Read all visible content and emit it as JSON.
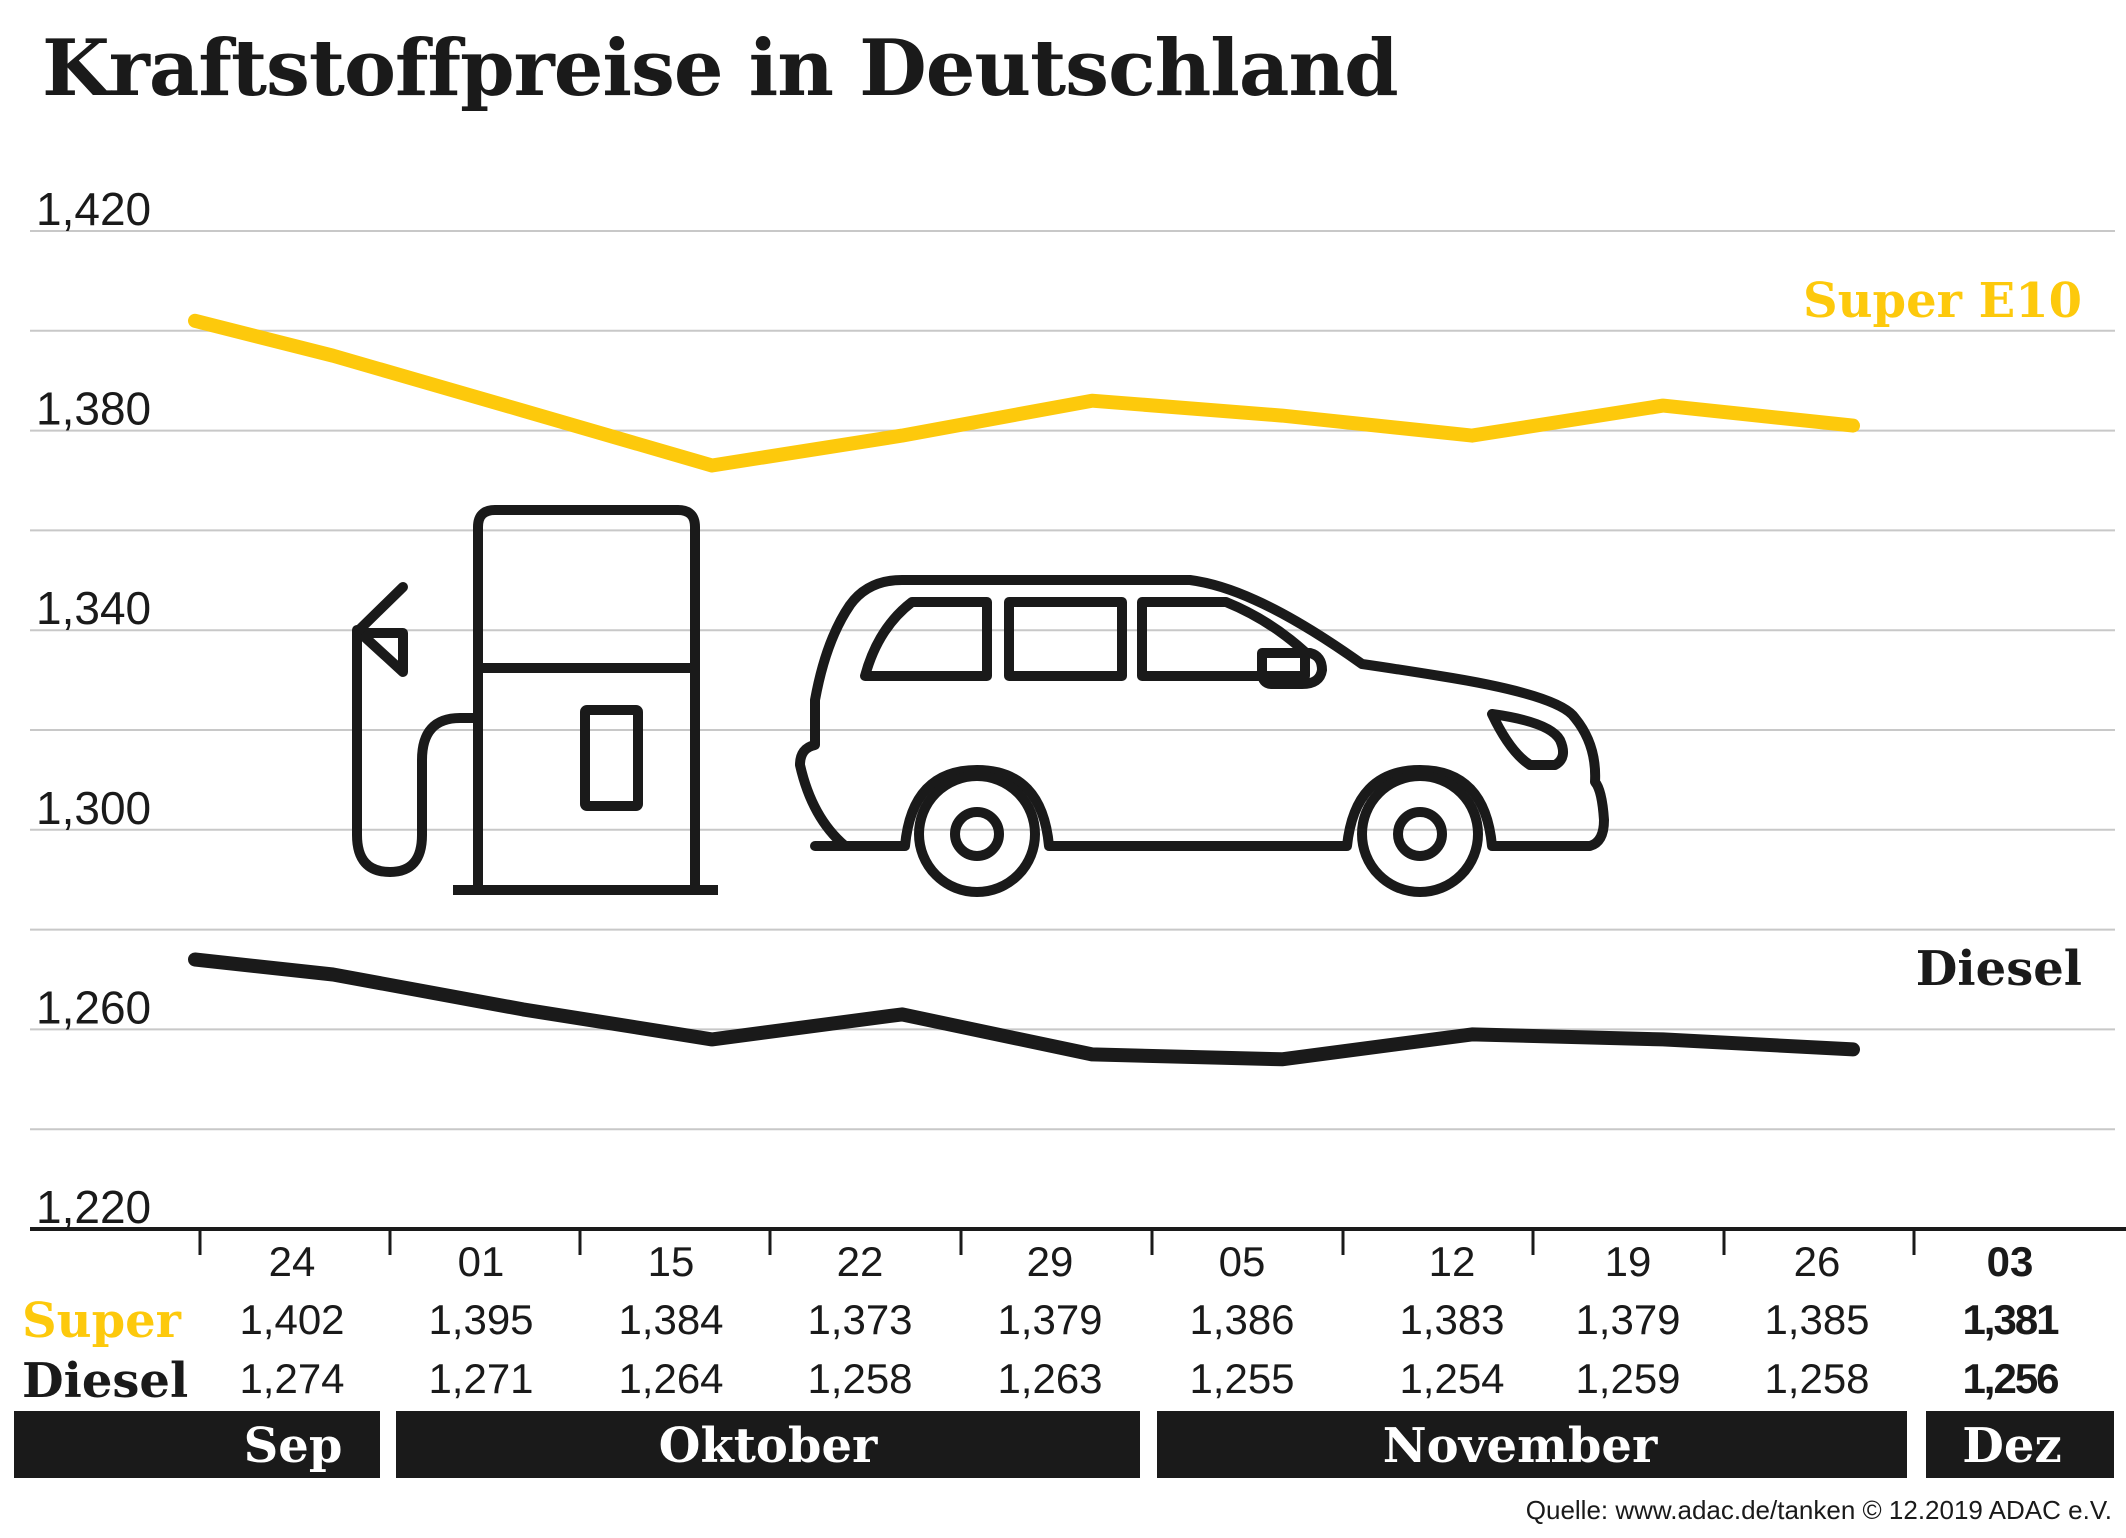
{
  "title": "Kraftstoffpreise in Deutschland",
  "source": "Quelle: www.adac.de/tanken   © 12.2019  ADAC e.V.",
  "colors": {
    "super": "#FDC90C",
    "diesel": "#1a1a1a",
    "grid": "#c8c8c8",
    "bar": "#1a1a1a"
  },
  "table": {
    "super_label": "Super",
    "diesel_label": "Diesel"
  },
  "chart_data": {
    "type": "line",
    "title": "Kraftstoffpreise in Deutschland",
    "xlabel": "",
    "ylabel": "",
    "x": [
      "24",
      "01",
      "15",
      "22",
      "29",
      "05",
      "12",
      "19",
      "26",
      "03"
    ],
    "months": [
      {
        "label": "Sep",
        "from": 0,
        "to": 0
      },
      {
        "label": "Oktober",
        "from": 1,
        "to": 4
      },
      {
        "label": "November",
        "from": 5,
        "to": 8
      },
      {
        "label": "Dez",
        "from": 9,
        "to": 9
      }
    ],
    "series": [
      {
        "name": "Super E10",
        "key": "super",
        "values": [
          1.402,
          1.395,
          1.384,
          1.373,
          1.379,
          1.386,
          1.383,
          1.379,
          1.385,
          1.381
        ],
        "labels": [
          "1,402",
          "1,395",
          "1,384",
          "1,373",
          "1,379",
          "1,386",
          "1,383",
          "1,379",
          "1,385",
          "1,381"
        ]
      },
      {
        "name": "Diesel",
        "key": "diesel",
        "values": [
          1.274,
          1.271,
          1.264,
          1.258,
          1.263,
          1.255,
          1.254,
          1.259,
          1.258,
          1.256
        ],
        "labels": [
          "1,274",
          "1,271",
          "1,264",
          "1,258",
          "1,263",
          "1,255",
          "1,254",
          "1,259",
          "1,258",
          "1,256"
        ]
      }
    ],
    "yticks": [
      1.42,
      1.38,
      1.34,
      1.3,
      1.26,
      1.22
    ],
    "ytick_labels": [
      "1,420",
      "1,380",
      "1,340",
      "1,300",
      "1,260",
      "1,220"
    ],
    "ylim": [
      1.22,
      1.42
    ],
    "grid": true
  }
}
